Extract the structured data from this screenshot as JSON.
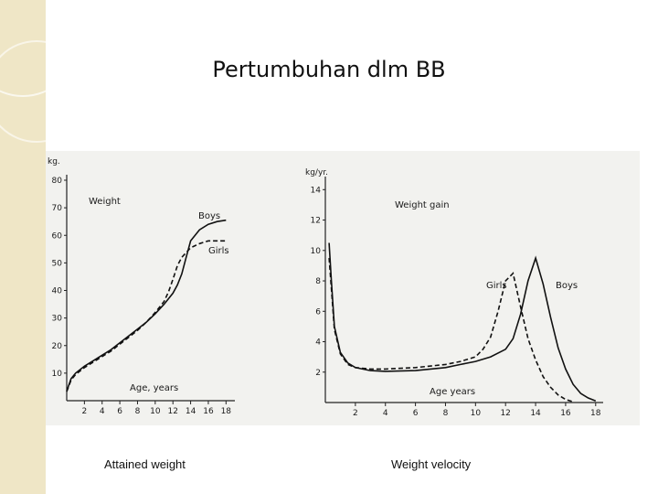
{
  "slide": {
    "title": "Pertumbuhan dlm BB",
    "caption_left": "Attained weight",
    "caption_right": "Weight  velocity",
    "decoration_color": "#efe6c6"
  },
  "chart_data": [
    {
      "type": "line",
      "title": "Weight",
      "ylabel": "kg.",
      "xlabel": "Age, years",
      "xlim": [
        0,
        19
      ],
      "ylim": [
        0,
        80
      ],
      "xticks": [
        2,
        4,
        6,
        8,
        10,
        12,
        14,
        16,
        18
      ],
      "yticks": [
        10,
        20,
        30,
        40,
        50,
        60,
        70,
        80
      ],
      "series": [
        {
          "name": "Boys",
          "style": "solid",
          "x": [
            0,
            0.5,
            1,
            2,
            3,
            4,
            5,
            6,
            7,
            8,
            9,
            10,
            11,
            12,
            12.5,
            13,
            13.5,
            14,
            15,
            16,
            17,
            18
          ],
          "y": [
            3.5,
            8,
            10,
            12.5,
            14.5,
            16.5,
            18.5,
            21,
            23.5,
            26,
            28.5,
            31.5,
            35,
            39,
            42,
            46,
            52,
            58,
            62,
            64,
            65,
            65.5
          ]
        },
        {
          "name": "Girls",
          "style": "dashed",
          "x": [
            0,
            0.5,
            1,
            2,
            3,
            4,
            5,
            6,
            7,
            8,
            9,
            10,
            11,
            11.5,
            12,
            12.5,
            13,
            14,
            15,
            16,
            17,
            18
          ],
          "y": [
            3.3,
            7.5,
            9.5,
            12,
            14,
            16,
            18,
            20.5,
            23,
            25.5,
            28.5,
            32,
            36,
            39.5,
            44,
            49,
            52,
            55.5,
            57,
            58,
            58,
            58
          ]
        }
      ]
    },
    {
      "type": "line",
      "title": "Weight gain",
      "ylabel": "kg/yr.",
      "xlabel": "Age years",
      "xlim": [
        0,
        18.5
      ],
      "ylim": [
        0,
        14.5
      ],
      "xticks": [
        2,
        4,
        6,
        8,
        10,
        12,
        14,
        16,
        18
      ],
      "yticks": [
        2,
        4,
        6,
        8,
        10,
        12,
        14
      ],
      "series": [
        {
          "name": "Boys",
          "style": "solid",
          "x": [
            0.25,
            0.4,
            0.6,
            1,
            1.5,
            2,
            3,
            4,
            6,
            8,
            9,
            10,
            11,
            12,
            12.5,
            13,
            13.5,
            14,
            14.5,
            15,
            15.5,
            16,
            16.5,
            17,
            17.5,
            18
          ],
          "y": [
            10.5,
            8,
            5,
            3.3,
            2.6,
            2.3,
            2.1,
            2.05,
            2.1,
            2.3,
            2.5,
            2.7,
            3.0,
            3.5,
            4.2,
            5.8,
            8.0,
            9.5,
            7.8,
            5.6,
            3.6,
            2.2,
            1.2,
            0.6,
            0.3,
            0.1
          ]
        },
        {
          "name": "Girls",
          "style": "dashed",
          "x": [
            0.25,
            0.4,
            0.6,
            1,
            1.5,
            2,
            3,
            4,
            6,
            8,
            9,
            10,
            10.5,
            11,
            11.5,
            12,
            12.5,
            13,
            13.5,
            14,
            14.5,
            15,
            15.5,
            16,
            16.5
          ],
          "y": [
            9.5,
            7.5,
            4.8,
            3.2,
            2.5,
            2.3,
            2.2,
            2.2,
            2.3,
            2.5,
            2.7,
            3.0,
            3.5,
            4.3,
            6.0,
            8.0,
            8.5,
            6.3,
            4.2,
            2.8,
            1.7,
            1.0,
            0.5,
            0.2,
            0.05
          ]
        }
      ]
    }
  ]
}
